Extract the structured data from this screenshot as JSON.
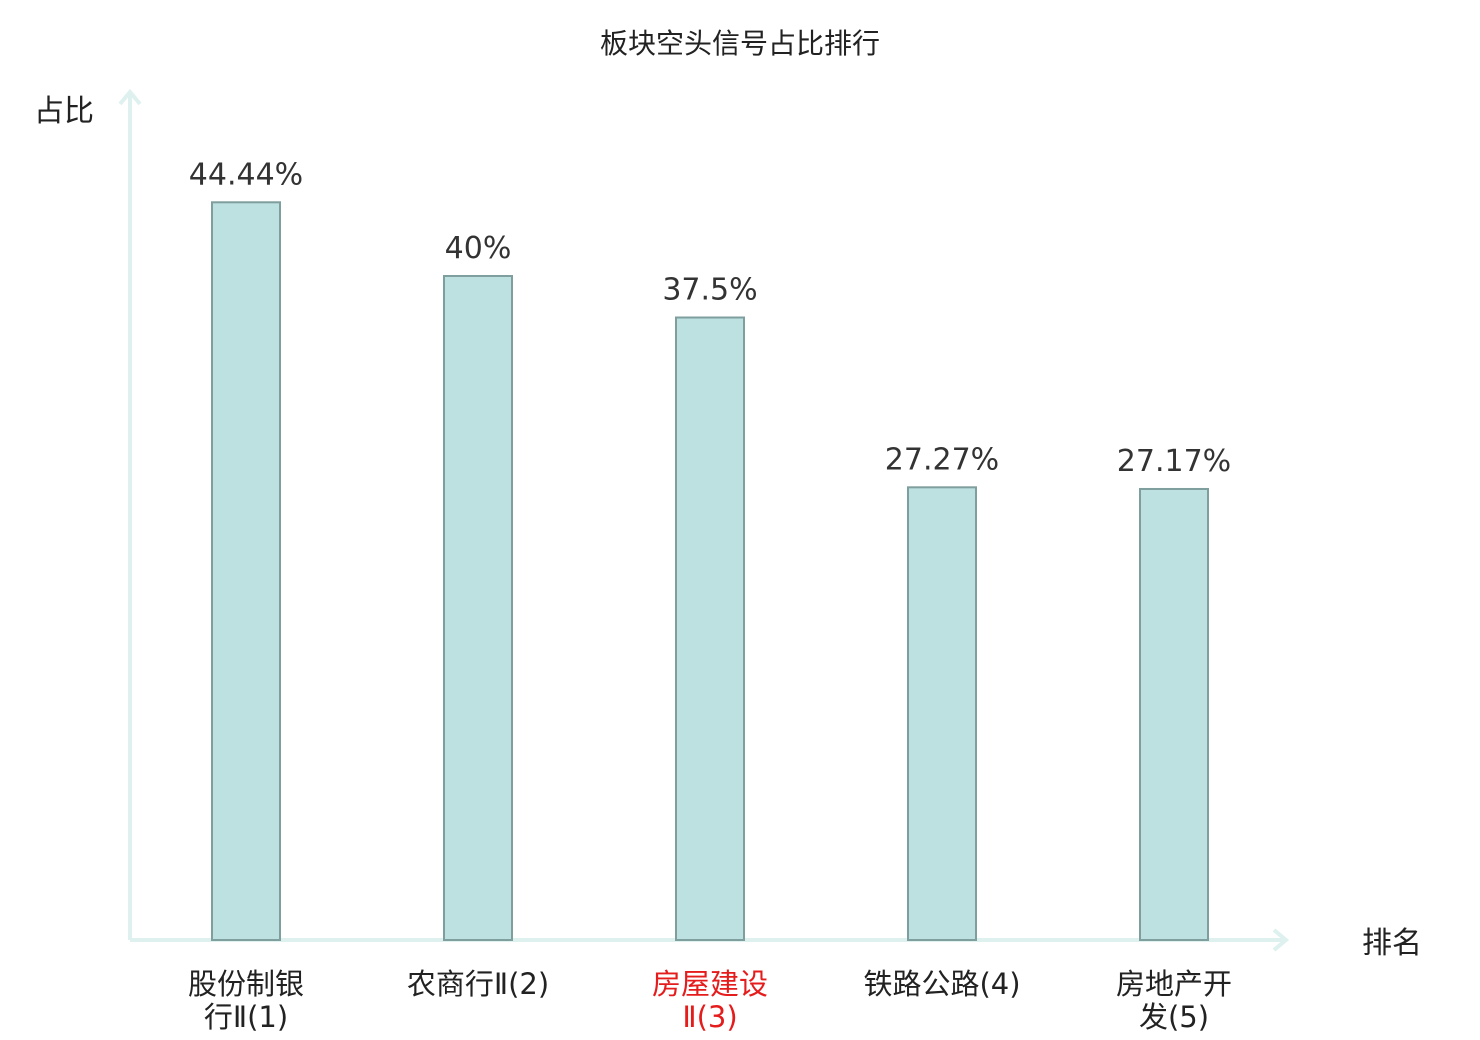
{
  "chart_data": {
    "type": "bar",
    "title": "板块空头信号占比排行",
    "ylabel": "占比",
    "xlabel": "排名",
    "categories": [
      {
        "lines": [
          "股份制银",
          "行Ⅱ(1)"
        ],
        "highlight": false
      },
      {
        "lines": [
          "农商行Ⅱ(2)"
        ],
        "highlight": false
      },
      {
        "lines": [
          "房屋建设",
          "Ⅱ(3)"
        ],
        "highlight": true
      },
      {
        "lines": [
          "铁路公路(4)"
        ],
        "highlight": false
      },
      {
        "lines": [
          "房地产开",
          "发(5)"
        ],
        "highlight": false
      }
    ],
    "values": [
      44.44,
      40,
      37.5,
      27.27,
      27.17
    ],
    "value_labels": [
      "44.44%",
      "40%",
      "37.5%",
      "27.27%",
      "27.17%"
    ],
    "ylim": [
      0,
      50
    ],
    "grid": false,
    "legend": "none"
  },
  "colors": {
    "bar_fill": "#bde0e1",
    "bar_stroke": "#7f9e9e",
    "axis": "#dff1ef",
    "text": "#333333",
    "label": "#222222",
    "highlight": "#e51c1c"
  }
}
